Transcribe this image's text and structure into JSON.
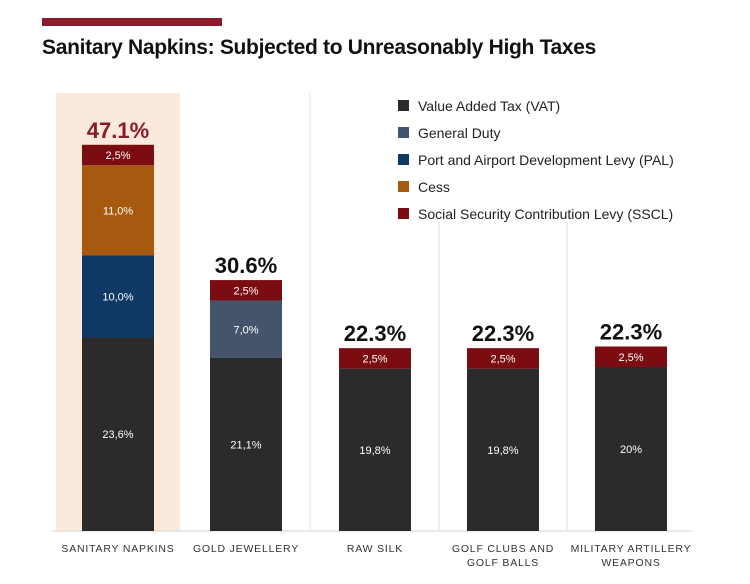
{
  "chart_data": {
    "type": "stacked-bar",
    "title": "Sanitary Napkins: Subjected to Unreasonably High Taxes",
    "xlabel": "",
    "ylabel": "",
    "ylim": [
      0,
      50
    ],
    "grid": false,
    "legend_position": "top-right",
    "categories": [
      {
        "label_lines": [
          "SANITARY NAPKINS"
        ],
        "total_label": "47.1%",
        "highlight": true
      },
      {
        "label_lines": [
          "GOLD JEWELLERY"
        ],
        "total_label": "30.6%",
        "highlight": false
      },
      {
        "label_lines": [
          "RAW SILK"
        ],
        "total_label": "22.3%",
        "highlight": false
      },
      {
        "label_lines": [
          "GOLF CLUBS AND",
          "GOLF BALLS"
        ],
        "total_label": "22.3%",
        "highlight": false
      },
      {
        "label_lines": [
          "MILITARY ARTILLERY",
          "WEAPONS"
        ],
        "total_label": "22.3%",
        "highlight": false
      }
    ],
    "series": [
      {
        "name": "Value Added Tax (VAT)",
        "color": "#2b2b2b",
        "values": [
          23.6,
          21.1,
          19.8,
          19.8,
          20.0
        ],
        "labels": [
          "23,6%",
          "21,1%",
          "19,8%",
          "19,8%",
          "20%"
        ]
      },
      {
        "name": "General Duty",
        "color": "#44546a",
        "values": [
          0,
          7.0,
          0,
          0,
          0
        ],
        "labels": [
          "",
          "7,0%",
          "",
          "",
          ""
        ]
      },
      {
        "name": "Port and Airport Development Levy (PAL)",
        "color": "#0f3a66",
        "values": [
          10.0,
          0,
          0,
          0,
          0
        ],
        "labels": [
          "10,0%",
          "",
          "",
          "",
          ""
        ]
      },
      {
        "name": "Cess",
        "color": "#a65a10",
        "values": [
          11.0,
          0,
          0,
          0,
          0
        ],
        "labels": [
          "11,0%",
          "",
          "",
          "",
          ""
        ]
      },
      {
        "name": "Social Security Contribution Levy (SSCL)",
        "color": "#7a0c12",
        "values": [
          2.5,
          2.5,
          2.5,
          2.5,
          2.5
        ],
        "labels": [
          "2,5%",
          "2,5%",
          "2,5%",
          "2,5%",
          "2,5%"
        ]
      }
    ],
    "colors": {
      "highlight_background": "#fbe9dc",
      "highlight_total_text": "#8b1a2b",
      "total_text": "#111111",
      "title_rule": "#8b1a2b"
    }
  }
}
